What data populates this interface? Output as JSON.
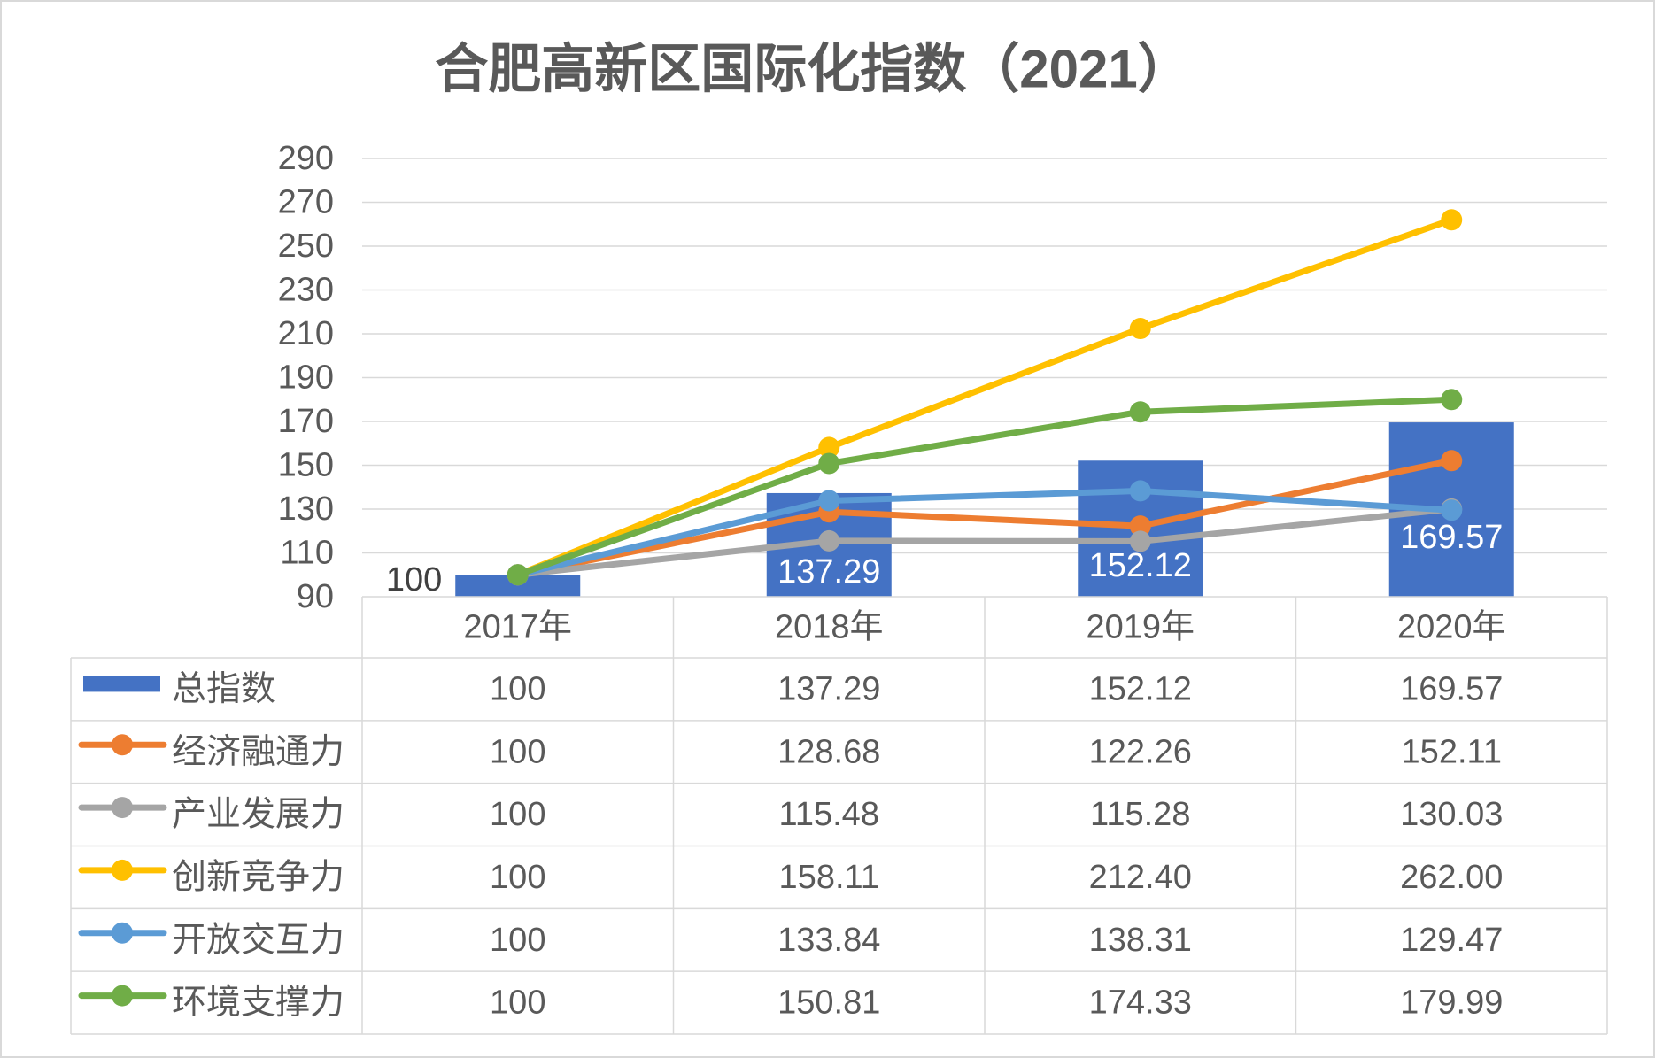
{
  "chart_data": {
    "type": "bar",
    "title": "合肥高新区国际化指数（2021）",
    "categories": [
      "2017年",
      "2018年",
      "2019年",
      "2020年"
    ],
    "ylim": [
      90,
      290
    ],
    "yticks": [
      290,
      270,
      250,
      230,
      210,
      190,
      170,
      150,
      130,
      110,
      90
    ],
    "grid": true,
    "legend": "bottom-table",
    "series": [
      {
        "name": "总指数",
        "type": "bar",
        "color": "#4472C4",
        "values": [
          100,
          137.29,
          152.12,
          169.57
        ],
        "labels": [
          "100",
          "137.29",
          "152.12",
          "169.57"
        ],
        "table": [
          "100",
          "137.29",
          "152.12",
          "169.57"
        ]
      },
      {
        "name": "经济融通力",
        "type": "line",
        "color": "#ED7D31",
        "values": [
          100,
          128.68,
          122.26,
          152.11
        ],
        "table": [
          "100",
          "128.68",
          "122.26",
          "152.11"
        ]
      },
      {
        "name": "产业发展力",
        "type": "line",
        "color": "#A5A5A5",
        "values": [
          100,
          115.48,
          115.28,
          130.03
        ],
        "table": [
          "100",
          "115.48",
          "115.28",
          "130.03"
        ]
      },
      {
        "name": "创新竞争力",
        "type": "line",
        "color": "#FFC000",
        "values": [
          100,
          158.11,
          212.4,
          262.0
        ],
        "table": [
          "100",
          "158.11",
          "212.40",
          "262.00"
        ]
      },
      {
        "name": "开放交互力",
        "type": "line",
        "color": "#5B9BD5",
        "values": [
          100,
          133.84,
          138.31,
          129.47
        ],
        "table": [
          "100",
          "133.84",
          "138.31",
          "129.47"
        ]
      },
      {
        "name": "环境支撑力",
        "type": "line",
        "color": "#70AD47",
        "values": [
          100,
          150.81,
          174.33,
          179.99
        ],
        "table": [
          "100",
          "150.81",
          "174.33",
          "179.99"
        ]
      }
    ]
  }
}
